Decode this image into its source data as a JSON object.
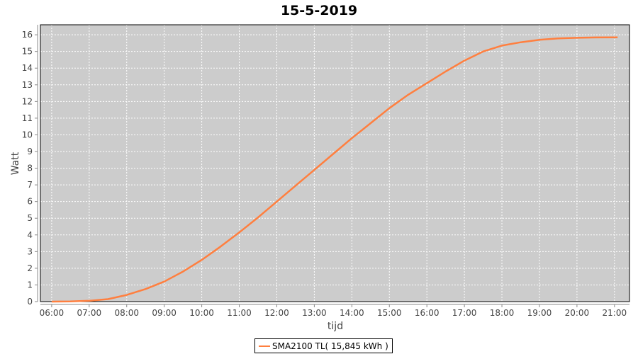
{
  "chart_data": {
    "type": "line",
    "title": "15-5-2019",
    "xlabel": "tijd",
    "ylabel": "Watt",
    "xlim": [
      "05:42",
      "21:24"
    ],
    "ylim": [
      0,
      16.6
    ],
    "x_ticks": [
      "06:00",
      "07:00",
      "08:00",
      "09:00",
      "10:00",
      "11:00",
      "12:00",
      "13:00",
      "14:00",
      "15:00",
      "16:00",
      "17:00",
      "18:00",
      "19:00",
      "20:00",
      "21:00"
    ],
    "y_ticks": [
      0,
      1,
      2,
      3,
      4,
      5,
      6,
      7,
      8,
      9,
      10,
      11,
      12,
      13,
      14,
      15,
      16
    ],
    "grid": true,
    "legend_placement": "bottom",
    "plot_background": "#cccccc",
    "series": [
      {
        "name": "SMA2100 TL( 15,845 kWh )",
        "color": "#ff7f3f",
        "x": [
          "06:00",
          "06:30",
          "07:00",
          "07:30",
          "08:00",
          "08:30",
          "09:00",
          "09:30",
          "10:00",
          "10:30",
          "11:00",
          "11:30",
          "12:00",
          "12:30",
          "13:00",
          "13:30",
          "14:00",
          "14:30",
          "15:00",
          "15:30",
          "16:00",
          "16:30",
          "17:00",
          "17:30",
          "18:00",
          "18:30",
          "19:00",
          "19:30",
          "20:00",
          "20:30",
          "21:05"
        ],
        "values": [
          0,
          0.01,
          0.05,
          0.15,
          0.4,
          0.75,
          1.2,
          1.8,
          2.5,
          3.3,
          4.15,
          5.05,
          6.0,
          6.95,
          7.9,
          8.85,
          9.8,
          10.7,
          11.6,
          12.4,
          13.1,
          13.8,
          14.45,
          15.0,
          15.35,
          15.55,
          15.7,
          15.78,
          15.82,
          15.84,
          15.845
        ]
      }
    ]
  }
}
